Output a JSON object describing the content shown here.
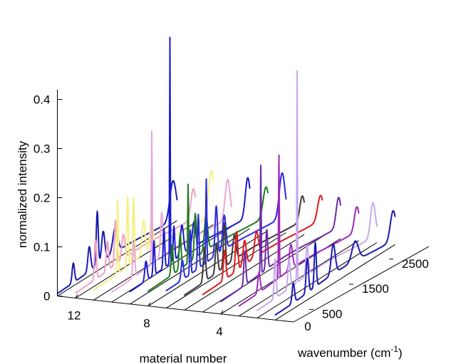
{
  "chart_data": {
    "type": "line",
    "title": "",
    "axes": {
      "material": {
        "label": "material number",
        "ticks": [
          12,
          8,
          4
        ],
        "range": [
          0,
          13
        ]
      },
      "wavenumber": {
        "label": "wavenumber (cm",
        "label_superscript": "-1",
        "label_close": ")",
        "ticks": [
          500,
          1500,
          2500
        ],
        "zero_tick": "0",
        "range": [
          0,
          3000
        ]
      },
      "intensity": {
        "label": "normalized intensity",
        "ticks": [
          0,
          0.1,
          0.2,
          0.3,
          0.4
        ],
        "tick_labels": [
          "0",
          "0.1",
          "0.2",
          "0.3",
          "0.4"
        ],
        "range": [
          0,
          0.42
        ]
      }
    },
    "floor_line_materials": [
      1,
      2,
      3,
      4,
      5,
      6,
      7,
      8,
      9,
      10,
      11,
      12,
      13
    ],
    "series": [
      {
        "material": 13,
        "color": "#1a1ab0",
        "baseline": 0.005,
        "peaks": [
          [
            400,
            0.04,
            30
          ],
          [
            800,
            0.05,
            35
          ],
          [
            1000,
            0.11,
            25
          ],
          [
            1150,
            0.06,
            40
          ],
          [
            1450,
            0.05,
            60
          ],
          [
            2900,
            0.08,
            80
          ]
        ]
      },
      {
        "material": 12,
        "color": "#f0a0c0",
        "baseline": 0.01,
        "peaks": [
          [
            500,
            0.08,
            25
          ],
          [
            800,
            0.06,
            30
          ],
          [
            1000,
            0.09,
            25
          ],
          [
            1200,
            0.05,
            40
          ],
          [
            2950,
            0.06,
            60
          ]
        ]
      },
      {
        "material": 11,
        "color": "#f5f080",
        "baseline": 0.02,
        "peaks": [
          [
            600,
            0.15,
            15
          ],
          [
            850,
            0.14,
            20
          ],
          [
            1000,
            0.13,
            20
          ],
          [
            1250,
            0.07,
            40
          ],
          [
            1450,
            0.06,
            40
          ],
          [
            2950,
            0.09,
            70
          ]
        ]
      },
      {
        "material": 10,
        "color": "#e8a8d8",
        "baseline": 0.02,
        "peaks": [
          [
            550,
            0.07,
            25
          ],
          [
            1000,
            0.27,
            10
          ],
          [
            1250,
            0.09,
            30
          ],
          [
            2900,
            0.08,
            60
          ]
        ]
      },
      {
        "material": 9,
        "color": "#1a1ad0",
        "baseline": 0.025,
        "peaks": [
          [
            400,
            0.04,
            30
          ],
          [
            600,
            0.07,
            20
          ],
          [
            850,
            0.08,
            20
          ],
          [
            1000,
            0.46,
            8
          ],
          [
            1100,
            0.07,
            20
          ],
          [
            1300,
            0.06,
            40
          ],
          [
            1600,
            0.05,
            40
          ],
          [
            2950,
            0.08,
            60
          ]
        ]
      },
      {
        "material": 8,
        "color": "#1e7a1e",
        "baseline": 0.03,
        "peaks": [
          [
            600,
            0.06,
            25
          ],
          [
            800,
            0.07,
            25
          ],
          [
            1000,
            0.16,
            10
          ],
          [
            1180,
            0.09,
            25
          ],
          [
            1450,
            0.07,
            40
          ],
          [
            2950,
            0.06,
            70
          ]
        ]
      },
      {
        "material": 7,
        "color": "#2a2ae0",
        "baseline": 0.035,
        "peaks": [
          [
            400,
            0.04,
            30
          ],
          [
            600,
            0.09,
            15
          ],
          [
            800,
            0.11,
            20
          ],
          [
            1000,
            0.17,
            12
          ],
          [
            1250,
            0.1,
            30
          ],
          [
            1450,
            0.07,
            40
          ],
          [
            2900,
            0.09,
            70
          ]
        ]
      },
      {
        "material": 6,
        "color": "#3a3a3a",
        "baseline": 0.03,
        "peaks": [
          [
            500,
            0.07,
            30
          ],
          [
            800,
            0.06,
            30
          ],
          [
            1000,
            0.09,
            25
          ],
          [
            1250,
            0.05,
            40
          ],
          [
            2950,
            0.05,
            60
          ]
        ]
      },
      {
        "material": 5,
        "color": "#e01818",
        "baseline": 0.035,
        "peaks": [
          [
            550,
            0.06,
            30
          ],
          [
            850,
            0.08,
            30
          ],
          [
            1050,
            0.05,
            40
          ],
          [
            1350,
            0.05,
            50
          ],
          [
            2950,
            0.05,
            70
          ]
        ]
      },
      {
        "material": 4,
        "color": "#6a2aa8",
        "baseline": 0.025,
        "peaks": [
          [
            600,
            0.07,
            25
          ],
          [
            1000,
            0.22,
            10
          ],
          [
            1150,
            0.08,
            25
          ],
          [
            2950,
            0.06,
            60
          ]
        ]
      },
      {
        "material": 3,
        "color": "#a028b8",
        "baseline": 0.02,
        "peaks": [
          [
            500,
            0.04,
            30
          ],
          [
            1000,
            0.25,
            10
          ],
          [
            1300,
            0.05,
            40
          ],
          [
            2950,
            0.05,
            60
          ]
        ]
      },
      {
        "material": 2,
        "color": "#c8a8e8",
        "baseline": 0.015,
        "peaks": [
          [
            450,
            0.08,
            25
          ],
          [
            800,
            0.06,
            30
          ],
          [
            1000,
            0.43,
            8
          ],
          [
            1250,
            0.06,
            30
          ],
          [
            2900,
            0.07,
            60
          ]
        ]
      },
      {
        "material": 1,
        "color": "#1a1ab0",
        "baseline": 0.01,
        "peaks": [
          [
            450,
            0.04,
            30
          ],
          [
            800,
            0.07,
            30
          ],
          [
            1000,
            0.09,
            25
          ],
          [
            1450,
            0.06,
            50
          ],
          [
            2000,
            0.04,
            80
          ],
          [
            2950,
            0.06,
            70
          ]
        ]
      }
    ]
  }
}
